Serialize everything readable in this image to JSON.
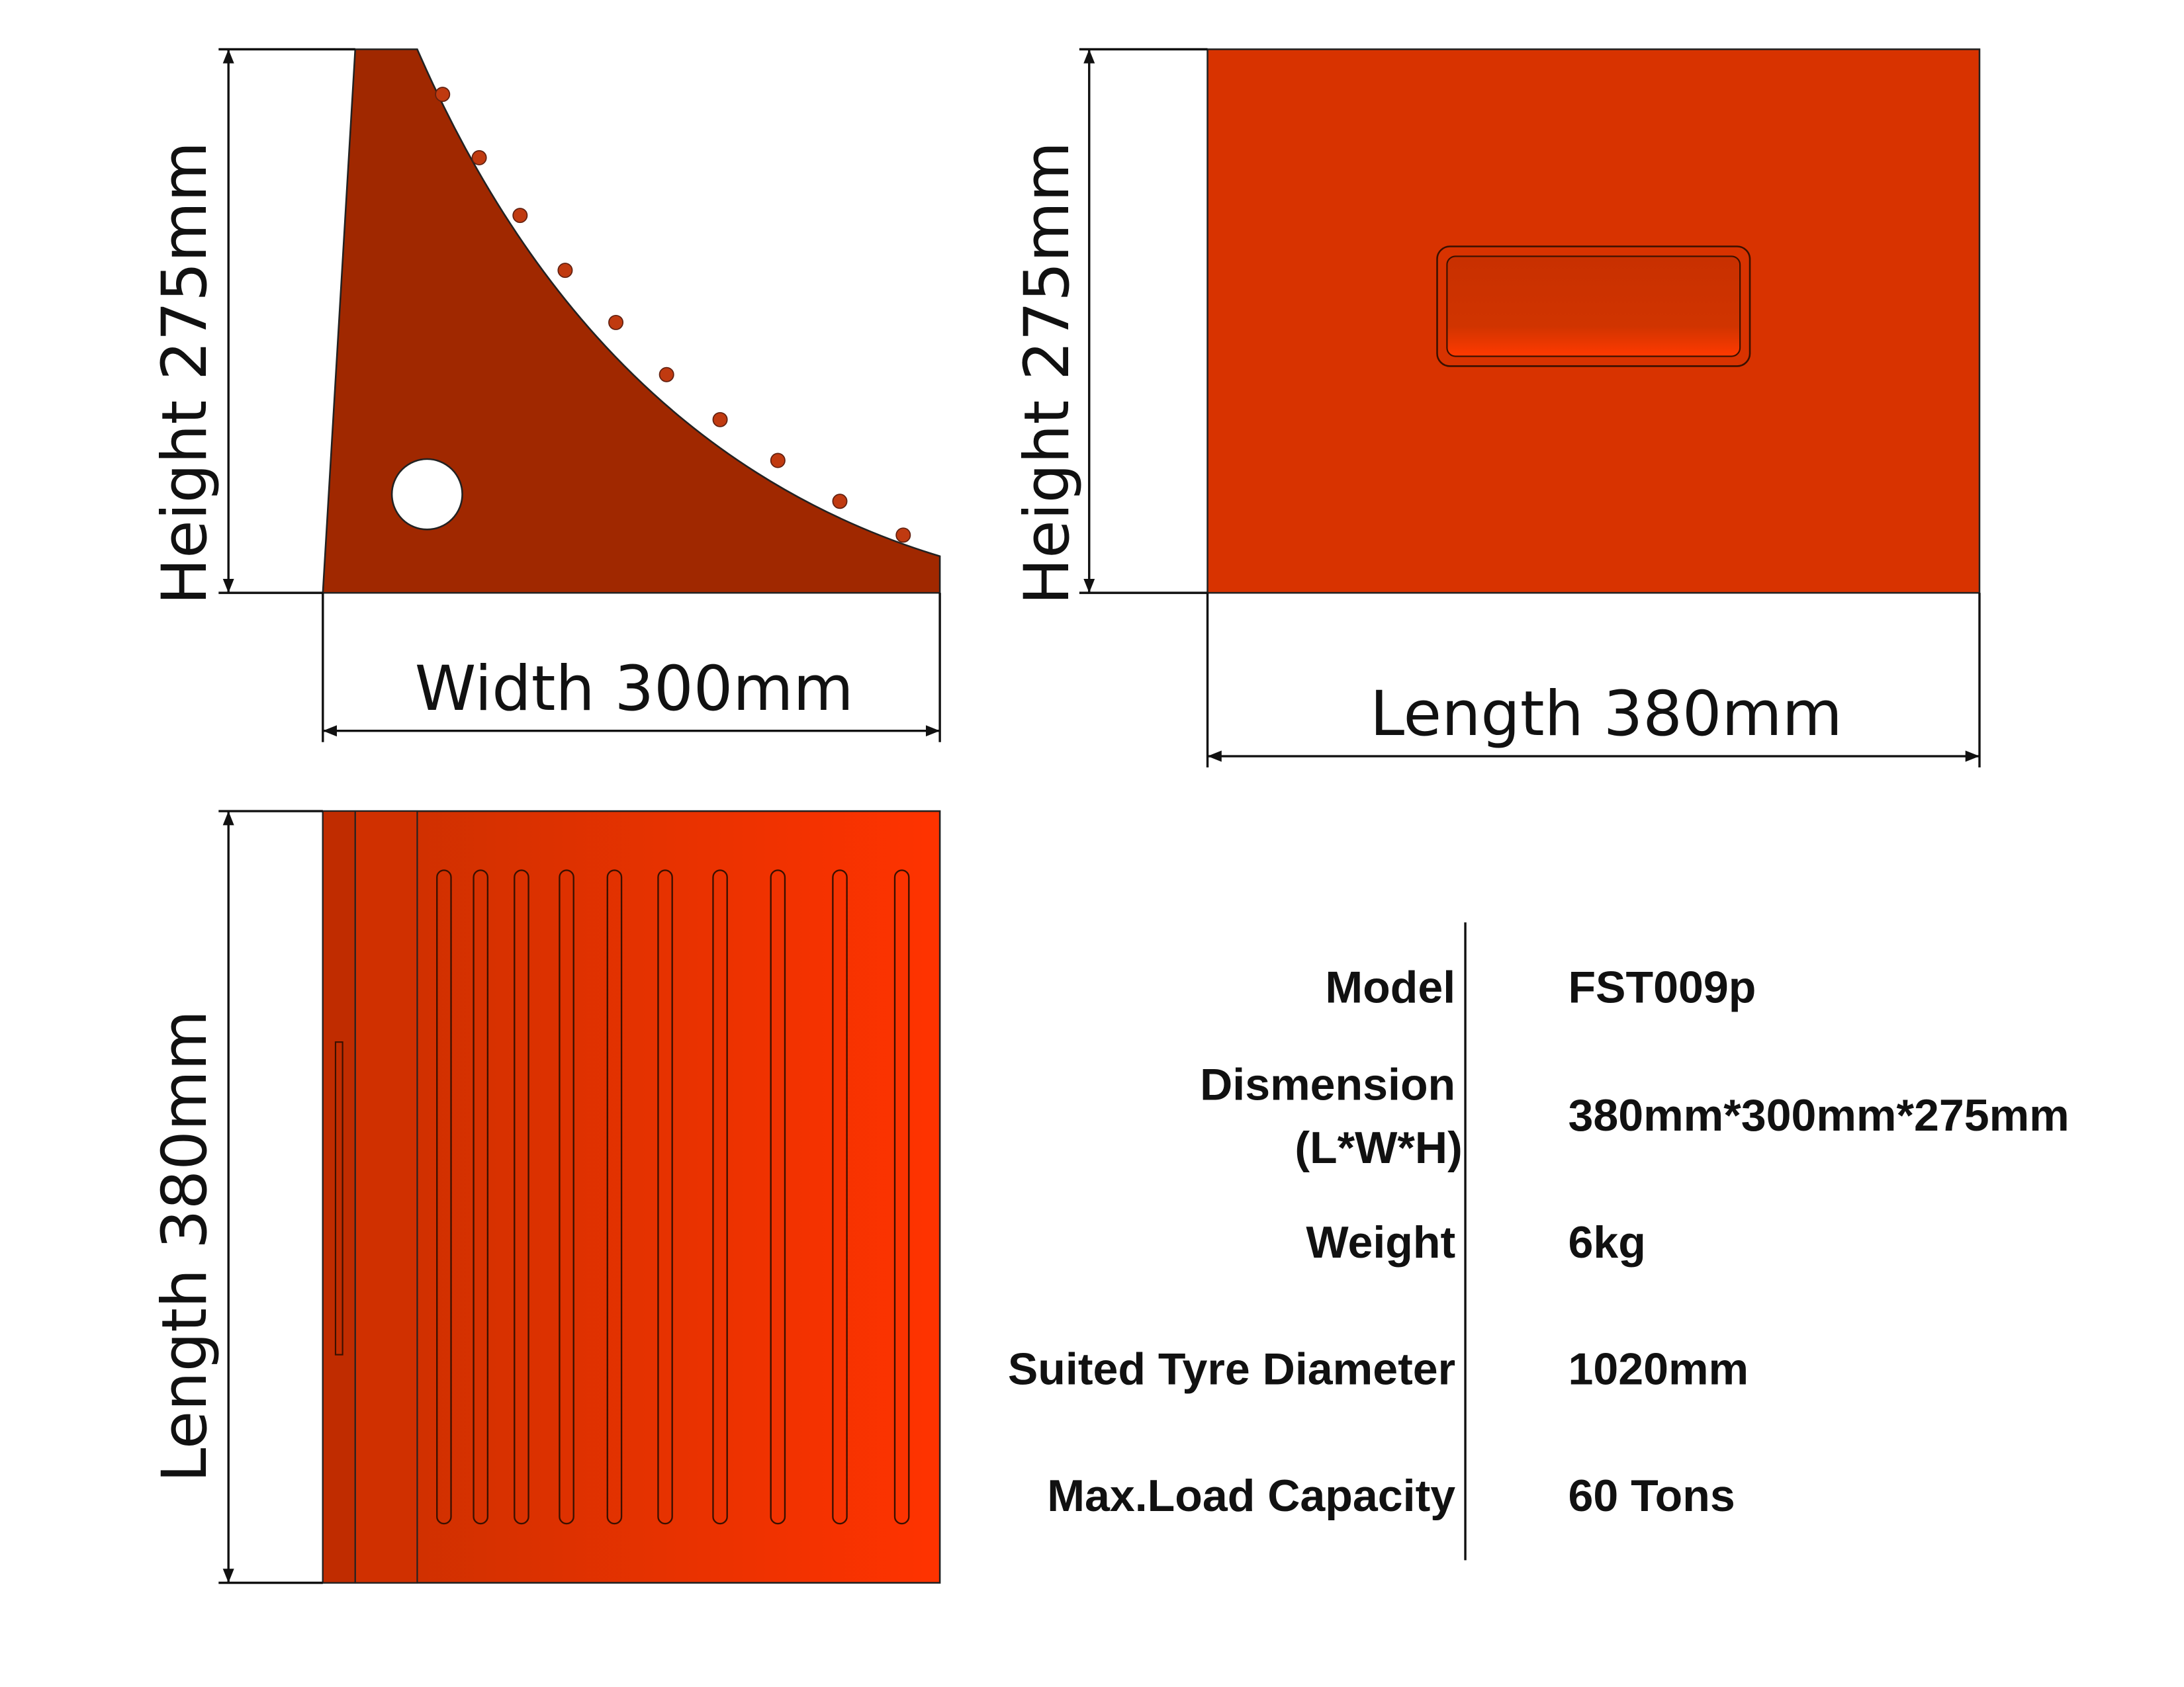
{
  "views": {
    "side": {
      "height_label": "Height 275mm",
      "width_label": "Width 300mm"
    },
    "front": {
      "height_label": "Height 275mm",
      "length_label": "Length 380mm"
    },
    "top": {
      "length_label": "Length 380mm"
    }
  },
  "specs": [
    {
      "label": "Model",
      "value": "FST009p"
    },
    {
      "label": "Dismension",
      "label_note": "(L*W*H)",
      "value": "380mm*300mm*275mm"
    },
    {
      "label": "Weight",
      "value": "6kg"
    },
    {
      "label": "Suited Tyre Diameter",
      "value": "1020mm"
    },
    {
      "label": "Max.Load Capacity",
      "value": "60 Tons"
    }
  ]
}
